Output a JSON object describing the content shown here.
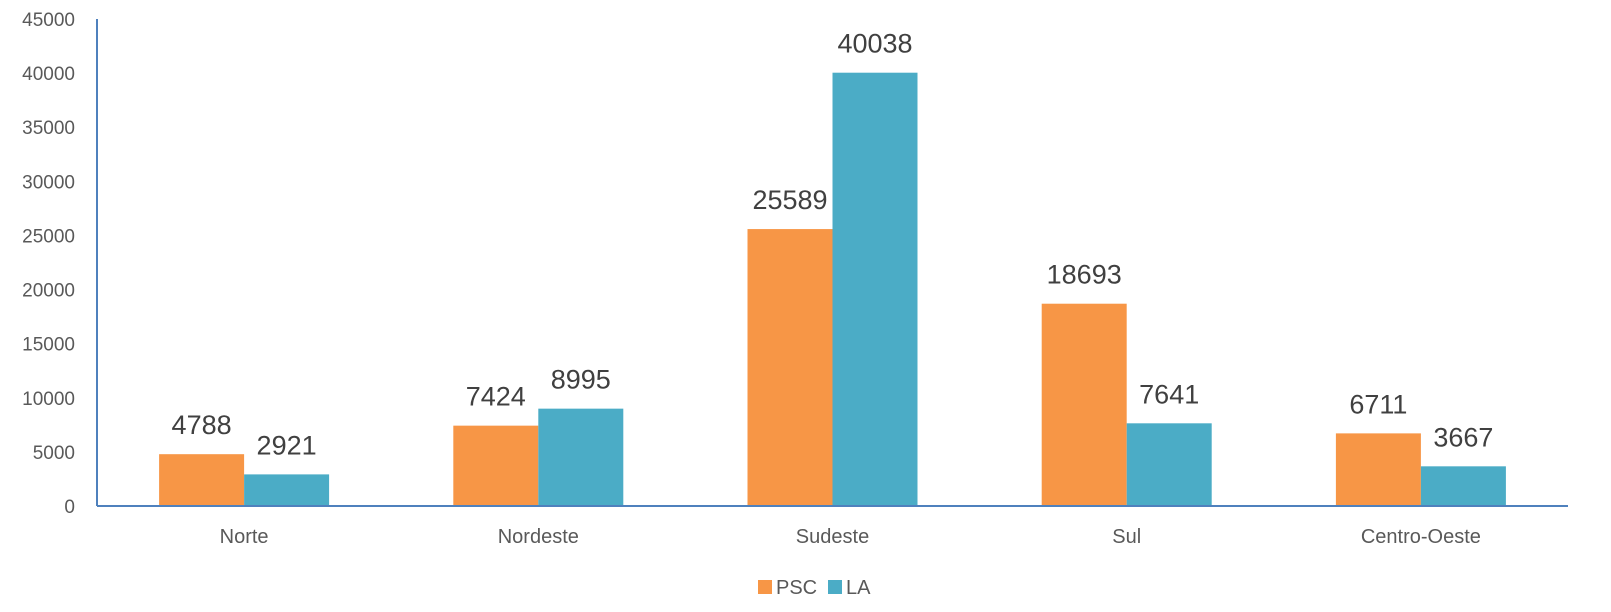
{
  "chart_data": {
    "type": "bar",
    "categories": [
      "Norte",
      "Nordeste",
      "Sudeste",
      "Sul",
      "Centro-Oeste"
    ],
    "series": [
      {
        "name": "PSC",
        "color": "#F79646",
        "values": [
          4788,
          7424,
          25589,
          18693,
          6711
        ]
      },
      {
        "name": "LA",
        "color": "#4BACC6",
        "values": [
          2921,
          8995,
          40038,
          7641,
          3667
        ]
      }
    ],
    "ylim": [
      0,
      45000
    ],
    "yticks": [
      0,
      5000,
      10000,
      15000,
      20000,
      25000,
      30000,
      35000,
      40000,
      45000
    ],
    "grid": false,
    "legend_position": "bottom",
    "axis_color": "#4F81BD"
  }
}
